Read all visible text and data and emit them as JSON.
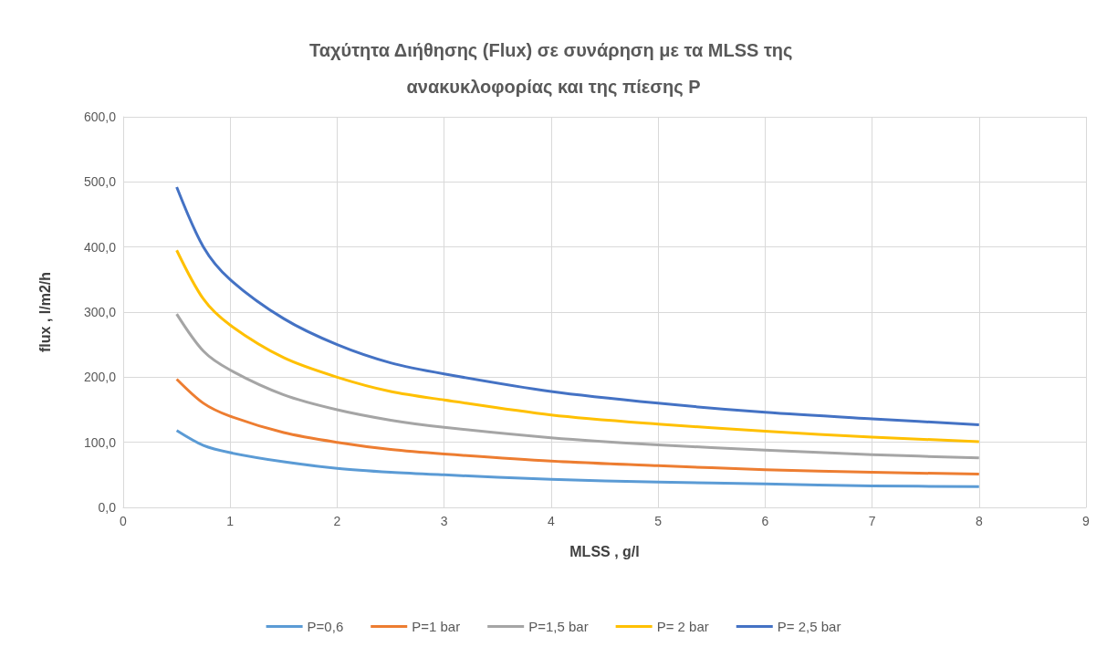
{
  "chart_data": {
    "type": "line",
    "title": "Ταχύτητα Διήθησης (Flux) σε συνάρηση με τα MLSS της ανακυκλοφορίας και της πίεσης P",
    "xlabel": "MLSS , g/l",
    "ylabel": "flux , l/m2/h",
    "x": [
      0.5,
      0.75,
      1,
      1.5,
      2,
      2.5,
      3,
      4,
      5,
      6,
      7,
      8
    ],
    "series": [
      {
        "name": "P=0,6",
        "color": "#5b9bd5",
        "values": [
          118,
          95,
          84,
          70,
          60,
          54,
          50,
          43,
          39,
          36,
          33,
          32
        ]
      },
      {
        "name": "P=1 bar",
        "color": "#ed7d31",
        "values": [
          197,
          160,
          140,
          115,
          100,
          89,
          82,
          71,
          64,
          58,
          54,
          51
        ]
      },
      {
        "name": "P=1,5 bar",
        "color": "#a5a5a5",
        "values": [
          297,
          240,
          211,
          173,
          150,
          134,
          123,
          107,
          96,
          88,
          81,
          76
        ]
      },
      {
        "name": "P= 2 bar",
        "color": "#ffc000",
        "values": [
          395,
          320,
          280,
          230,
          200,
          178,
          165,
          142,
          128,
          117,
          108,
          101
        ]
      },
      {
        "name": "P= 2,5 bar",
        "color": "#4472c4",
        "values": [
          492,
          400,
          350,
          290,
          250,
          222,
          205,
          178,
          160,
          146,
          136,
          127
        ]
      }
    ],
    "xlim": [
      0,
      9
    ],
    "xticks": [
      0,
      1,
      2,
      3,
      4,
      5,
      6,
      7,
      8,
      9
    ],
    "ylim": [
      0,
      600
    ],
    "yticks": [
      {
        "value": 0,
        "label": "0,0"
      },
      {
        "value": 100,
        "label": "100,0"
      },
      {
        "value": 200,
        "label": "200,0"
      },
      {
        "value": 300,
        "label": "300,0"
      },
      {
        "value": 400,
        "label": "400,0"
      },
      {
        "value": 500,
        "label": "500,0"
      },
      {
        "value": 600,
        "label": "600,0"
      }
    ],
    "grid": true,
    "legend": "bottom",
    "marker": "none",
    "line_style": "solid"
  }
}
